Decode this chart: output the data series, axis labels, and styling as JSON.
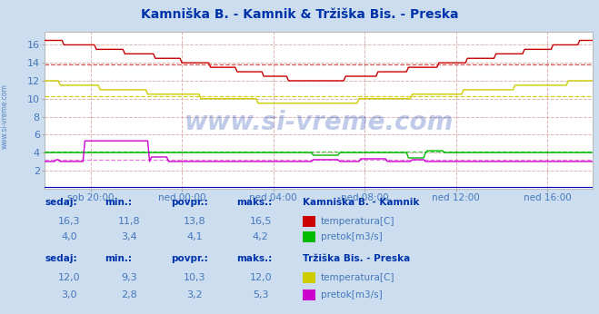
{
  "title": "Kamniška B. - Kamnik & Tržiška Bis. - Preska",
  "title_color": "#0033aa",
  "bg_color": "#ccddef",
  "plot_bg_color": "#ffffff",
  "figsize": [
    6.59,
    3.46
  ],
  "dpi": 100,
  "xlim": [
    0,
    288
  ],
  "ylim": [
    0,
    17.5
  ],
  "ytick_vals": [
    2,
    4,
    6,
    8,
    10,
    12,
    14,
    16
  ],
  "xtick_labels": [
    "sob 20:00",
    "ned 00:00",
    "ned 04:00",
    "ned 08:00",
    "ned 12:00",
    "ned 16:00"
  ],
  "xtick_positions": [
    24,
    72,
    120,
    168,
    216,
    264
  ],
  "grid_color_v": "#ddaaaa",
  "grid_color_h": "#ddaaaa",
  "watermark": "www.si-vreme.com",
  "watermark_color": "#0033aa",
  "watermark_alpha": 0.25,
  "left_label": "www.si-vreme.com",
  "left_label_color": "#4477bb",
  "tick_color": "#4477bb",
  "line_colors": {
    "kamnik_temp": "#cc0000",
    "kamnik_pretok": "#00bb00",
    "preska_temp": "#cccc00",
    "preska_pretok": "#cc00cc",
    "visina": "#0000bb"
  },
  "avg_lines": {
    "kamnik_temp": 13.8,
    "kamnik_pretok": 4.1,
    "preska_temp": 10.3,
    "preska_pretok": 3.2
  },
  "stats_kamnik": {
    "sedaj": "16,3",
    "min": "11,8",
    "povpr": "13,8",
    "maks": "16,5",
    "sedaj2": "4,0",
    "min2": "3,4",
    "povpr2": "4,1",
    "maks2": "4,2"
  },
  "stats_preska": {
    "sedaj": "12,0",
    "min": "9,3",
    "povpr": "10,3",
    "maks": "12,0",
    "sedaj2": "3,0",
    "min2": "2,8",
    "povpr2": "3,2",
    "maks2": "5,3"
  },
  "legend_colors": {
    "kamnik_temp": "#cc0000",
    "kamnik_pretok": "#00bb00",
    "preska_temp": "#cccc00",
    "preska_pretok": "#cc00cc"
  },
  "header_color": "#0033aa",
  "value_color": "#4477bb"
}
